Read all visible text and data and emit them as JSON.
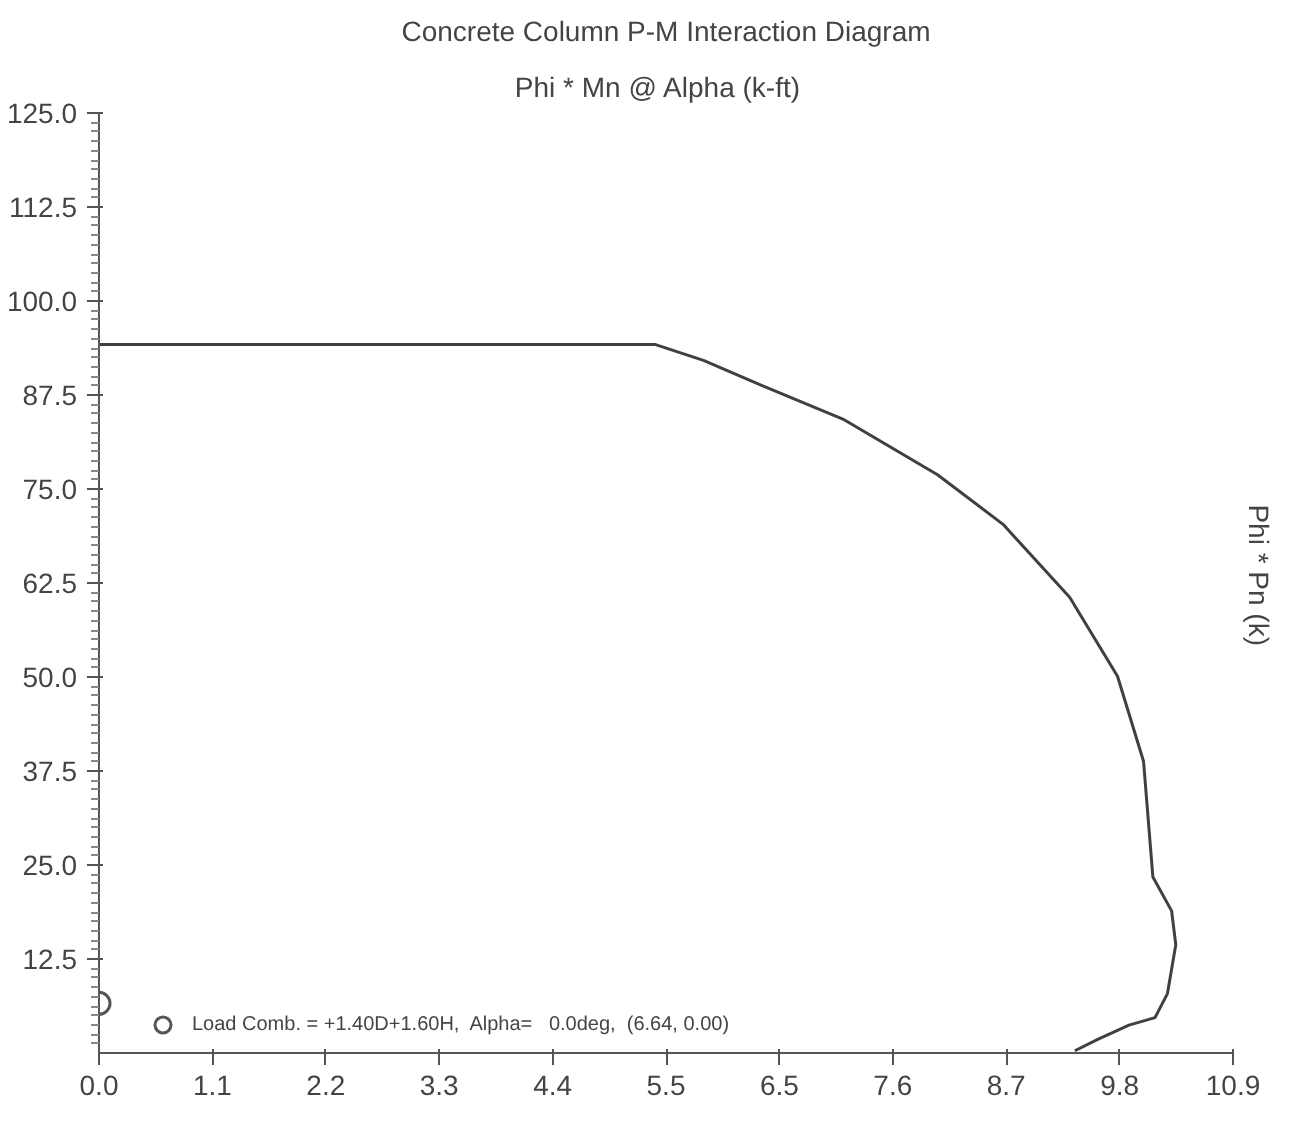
{
  "chart_data": {
    "type": "line",
    "title": "Concrete Column P-M Interaction Diagram",
    "xlabel": "Phi * Mn @ Alpha   (k-ft)",
    "ylabel": "Phi * Pn   (k)",
    "xlim": [
      0,
      10.9
    ],
    "ylim": [
      0,
      125
    ],
    "xticks": [
      {
        "value": 0,
        "label": "0.0"
      },
      {
        "value": 1.09,
        "label": "1.1"
      },
      {
        "value": 2.18,
        "label": "2.2"
      },
      {
        "value": 3.27,
        "label": "3.3"
      },
      {
        "value": 4.36,
        "label": "4.4"
      },
      {
        "value": 5.45,
        "label": "5.5"
      },
      {
        "value": 6.54,
        "label": "6.5"
      },
      {
        "value": 7.63,
        "label": "7.6"
      },
      {
        "value": 8.72,
        "label": "8.7"
      },
      {
        "value": 9.81,
        "label": "9.8"
      },
      {
        "value": 10.9,
        "label": "10.9"
      }
    ],
    "yticks": [
      {
        "value": 12.5,
        "label": "12.5"
      },
      {
        "value": 25,
        "label": "25.0"
      },
      {
        "value": 37.5,
        "label": "37.5"
      },
      {
        "value": 50,
        "label": "50.0"
      },
      {
        "value": 62.5,
        "label": "62.5"
      },
      {
        "value": 75,
        "label": "75.0"
      },
      {
        "value": 87.5,
        "label": "87.5"
      },
      {
        "value": 100,
        "label": "100.0"
      },
      {
        "value": 112.5,
        "label": "112.5"
      },
      {
        "value": 125,
        "label": "125.0"
      }
    ],
    "grid": false,
    "legend": "bottom",
    "series": [
      {
        "color": "#404040",
        "marker": "none",
        "line_style": "solid",
        "x": [
          0,
          5.35,
          5.81,
          6.38,
          7.15,
          8.06,
          8.69,
          9.33,
          9.79,
          10.04,
          10.13,
          10.31,
          10.35,
          10.27,
          10.15,
          9.9,
          9.6,
          9.38
        ],
        "values": [
          94.2,
          94.2,
          92.1,
          88.7,
          84.3,
          76.9,
          70.3,
          60.6,
          50.1,
          38.8,
          23.4,
          18.9,
          14.4,
          7.9,
          4.7,
          3.7,
          1.8,
          0.3
        ]
      },
      {
        "type": "scatter",
        "name": "Load Comb. = +1.40D+1.60H,  Alpha=   0.0deg,  (6.64, 0.00)",
        "color": "#555555",
        "marker": "circle",
        "x": [
          0
        ],
        "values": [
          6.6
        ]
      }
    ]
  }
}
